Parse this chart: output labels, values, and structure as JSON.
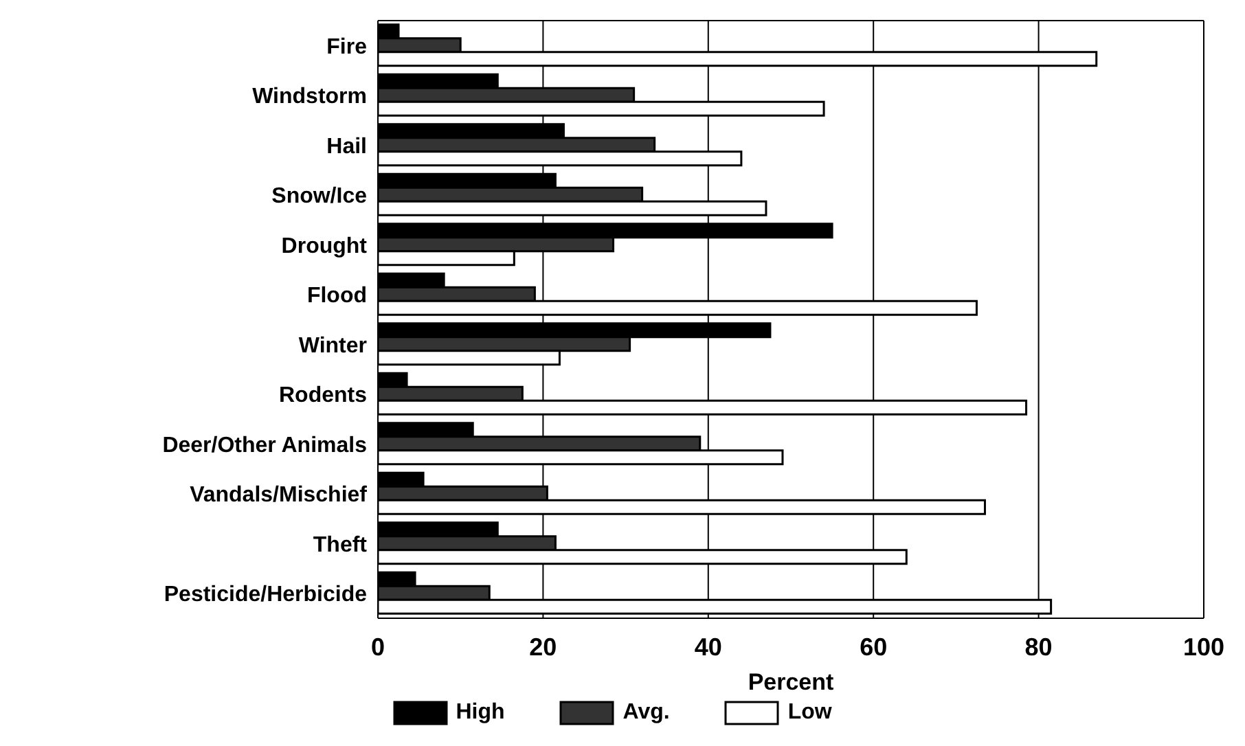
{
  "chart_data": {
    "type": "bar",
    "orientation": "horizontal",
    "xlabel": "Percent",
    "categories": [
      "Fire",
      "Windstorm",
      "Hail",
      "Snow/Ice",
      "Drought",
      "Flood",
      "Winter",
      "Rodents",
      "Deer/Other Animals",
      "Vandals/Mischief",
      "Theft",
      "Pesticide/Herbicide"
    ],
    "series": [
      {
        "name": "High",
        "color": "#000000",
        "values": [
          2.5,
          14.5,
          22.5,
          21.5,
          55,
          8,
          47.5,
          3.5,
          11.5,
          5.5,
          14.5,
          4.5
        ]
      },
      {
        "name": "Avg.",
        "color": "#333333",
        "values": [
          10,
          31,
          33.5,
          32,
          28.5,
          19,
          30.5,
          17.5,
          39,
          20.5,
          21.5,
          13.5
        ]
      },
      {
        "name": "Low",
        "color": "#ffffff",
        "values": [
          87,
          54,
          44,
          47,
          16.5,
          72.5,
          22,
          78.5,
          49,
          73.5,
          64,
          81.5
        ]
      }
    ],
    "xlim": [
      0,
      100
    ],
    "xticks": [
      0,
      20,
      40,
      60,
      80,
      100
    ],
    "grid": "x",
    "legend": "bottom"
  }
}
